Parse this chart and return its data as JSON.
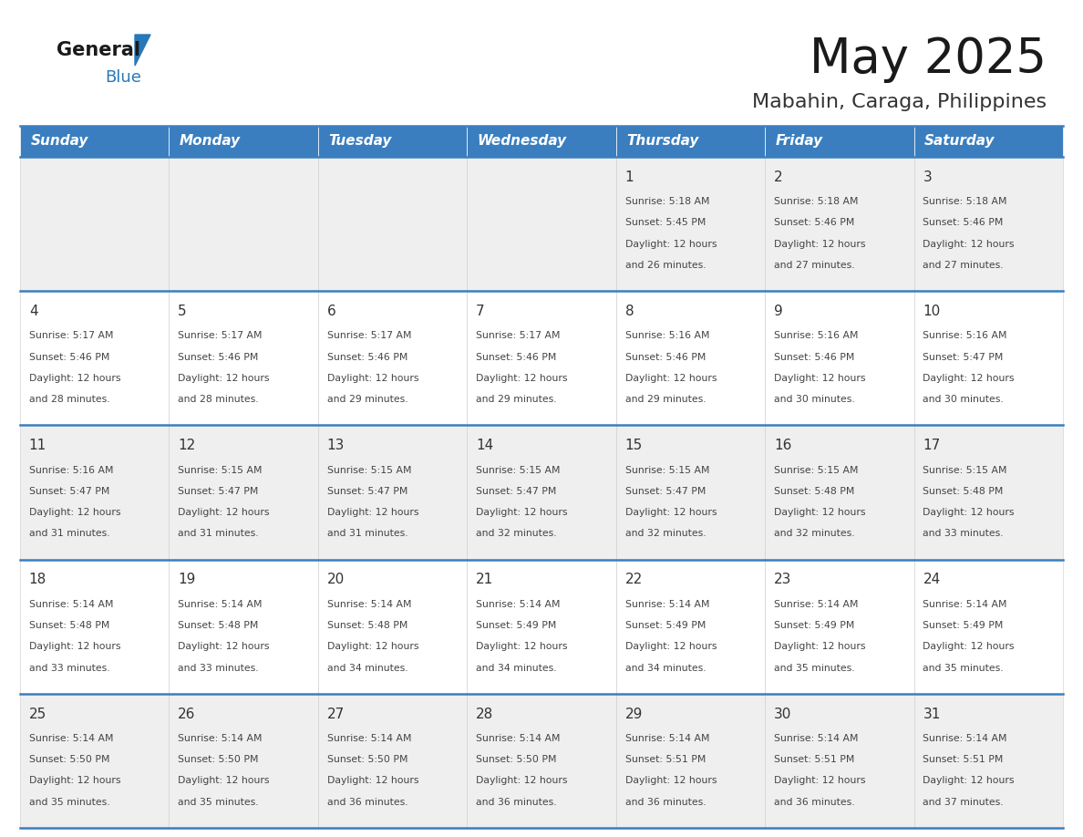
{
  "title": "May 2025",
  "subtitle": "Mabahin, Caraga, Philippines",
  "days_of_week": [
    "Sunday",
    "Monday",
    "Tuesday",
    "Wednesday",
    "Thursday",
    "Friday",
    "Saturday"
  ],
  "header_bg": "#3a7ebf",
  "header_text": "#ffffff",
  "row_bg_odd": "#efefef",
  "row_bg_even": "#ffffff",
  "day_number_color": "#333333",
  "info_text_color": "#444444",
  "border_color": "#3a7ebf",
  "grid_line_color": "#cccccc",
  "logo_text_color": "#1a1a1a",
  "logo_blue_color": "#2878b8",
  "title_color": "#1a1a1a",
  "subtitle_color": "#333333",
  "calendar_data": [
    {
      "day": 1,
      "col": 4,
      "row": 0,
      "sunrise": "5:18 AM",
      "sunset": "5:45 PM",
      "daylight": "12 hours and 26 minutes."
    },
    {
      "day": 2,
      "col": 5,
      "row": 0,
      "sunrise": "5:18 AM",
      "sunset": "5:46 PM",
      "daylight": "12 hours and 27 minutes."
    },
    {
      "day": 3,
      "col": 6,
      "row": 0,
      "sunrise": "5:18 AM",
      "sunset": "5:46 PM",
      "daylight": "12 hours and 27 minutes."
    },
    {
      "day": 4,
      "col": 0,
      "row": 1,
      "sunrise": "5:17 AM",
      "sunset": "5:46 PM",
      "daylight": "12 hours and 28 minutes."
    },
    {
      "day": 5,
      "col": 1,
      "row": 1,
      "sunrise": "5:17 AM",
      "sunset": "5:46 PM",
      "daylight": "12 hours and 28 minutes."
    },
    {
      "day": 6,
      "col": 2,
      "row": 1,
      "sunrise": "5:17 AM",
      "sunset": "5:46 PM",
      "daylight": "12 hours and 29 minutes."
    },
    {
      "day": 7,
      "col": 3,
      "row": 1,
      "sunrise": "5:17 AM",
      "sunset": "5:46 PM",
      "daylight": "12 hours and 29 minutes."
    },
    {
      "day": 8,
      "col": 4,
      "row": 1,
      "sunrise": "5:16 AM",
      "sunset": "5:46 PM",
      "daylight": "12 hours and 29 minutes."
    },
    {
      "day": 9,
      "col": 5,
      "row": 1,
      "sunrise": "5:16 AM",
      "sunset": "5:46 PM",
      "daylight": "12 hours and 30 minutes."
    },
    {
      "day": 10,
      "col": 6,
      "row": 1,
      "sunrise": "5:16 AM",
      "sunset": "5:47 PM",
      "daylight": "12 hours and 30 minutes."
    },
    {
      "day": 11,
      "col": 0,
      "row": 2,
      "sunrise": "5:16 AM",
      "sunset": "5:47 PM",
      "daylight": "12 hours and 31 minutes."
    },
    {
      "day": 12,
      "col": 1,
      "row": 2,
      "sunrise": "5:15 AM",
      "sunset": "5:47 PM",
      "daylight": "12 hours and 31 minutes."
    },
    {
      "day": 13,
      "col": 2,
      "row": 2,
      "sunrise": "5:15 AM",
      "sunset": "5:47 PM",
      "daylight": "12 hours and 31 minutes."
    },
    {
      "day": 14,
      "col": 3,
      "row": 2,
      "sunrise": "5:15 AM",
      "sunset": "5:47 PM",
      "daylight": "12 hours and 32 minutes."
    },
    {
      "day": 15,
      "col": 4,
      "row": 2,
      "sunrise": "5:15 AM",
      "sunset": "5:47 PM",
      "daylight": "12 hours and 32 minutes."
    },
    {
      "day": 16,
      "col": 5,
      "row": 2,
      "sunrise": "5:15 AM",
      "sunset": "5:48 PM",
      "daylight": "12 hours and 32 minutes."
    },
    {
      "day": 17,
      "col": 6,
      "row": 2,
      "sunrise": "5:15 AM",
      "sunset": "5:48 PM",
      "daylight": "12 hours and 33 minutes."
    },
    {
      "day": 18,
      "col": 0,
      "row": 3,
      "sunrise": "5:14 AM",
      "sunset": "5:48 PM",
      "daylight": "12 hours and 33 minutes."
    },
    {
      "day": 19,
      "col": 1,
      "row": 3,
      "sunrise": "5:14 AM",
      "sunset": "5:48 PM",
      "daylight": "12 hours and 33 minutes."
    },
    {
      "day": 20,
      "col": 2,
      "row": 3,
      "sunrise": "5:14 AM",
      "sunset": "5:48 PM",
      "daylight": "12 hours and 34 minutes."
    },
    {
      "day": 21,
      "col": 3,
      "row": 3,
      "sunrise": "5:14 AM",
      "sunset": "5:49 PM",
      "daylight": "12 hours and 34 minutes."
    },
    {
      "day": 22,
      "col": 4,
      "row": 3,
      "sunrise": "5:14 AM",
      "sunset": "5:49 PM",
      "daylight": "12 hours and 34 minutes."
    },
    {
      "day": 23,
      "col": 5,
      "row": 3,
      "sunrise": "5:14 AM",
      "sunset": "5:49 PM",
      "daylight": "12 hours and 35 minutes."
    },
    {
      "day": 24,
      "col": 6,
      "row": 3,
      "sunrise": "5:14 AM",
      "sunset": "5:49 PM",
      "daylight": "12 hours and 35 minutes."
    },
    {
      "day": 25,
      "col": 0,
      "row": 4,
      "sunrise": "5:14 AM",
      "sunset": "5:50 PM",
      "daylight": "12 hours and 35 minutes."
    },
    {
      "day": 26,
      "col": 1,
      "row": 4,
      "sunrise": "5:14 AM",
      "sunset": "5:50 PM",
      "daylight": "12 hours and 35 minutes."
    },
    {
      "day": 27,
      "col": 2,
      "row": 4,
      "sunrise": "5:14 AM",
      "sunset": "5:50 PM",
      "daylight": "12 hours and 36 minutes."
    },
    {
      "day": 28,
      "col": 3,
      "row": 4,
      "sunrise": "5:14 AM",
      "sunset": "5:50 PM",
      "daylight": "12 hours and 36 minutes."
    },
    {
      "day": 29,
      "col": 4,
      "row": 4,
      "sunrise": "5:14 AM",
      "sunset": "5:51 PM",
      "daylight": "12 hours and 36 minutes."
    },
    {
      "day": 30,
      "col": 5,
      "row": 4,
      "sunrise": "5:14 AM",
      "sunset": "5:51 PM",
      "daylight": "12 hours and 36 minutes."
    },
    {
      "day": 31,
      "col": 6,
      "row": 4,
      "sunrise": "5:14 AM",
      "sunset": "5:51 PM",
      "daylight": "12 hours and 37 minutes."
    }
  ]
}
